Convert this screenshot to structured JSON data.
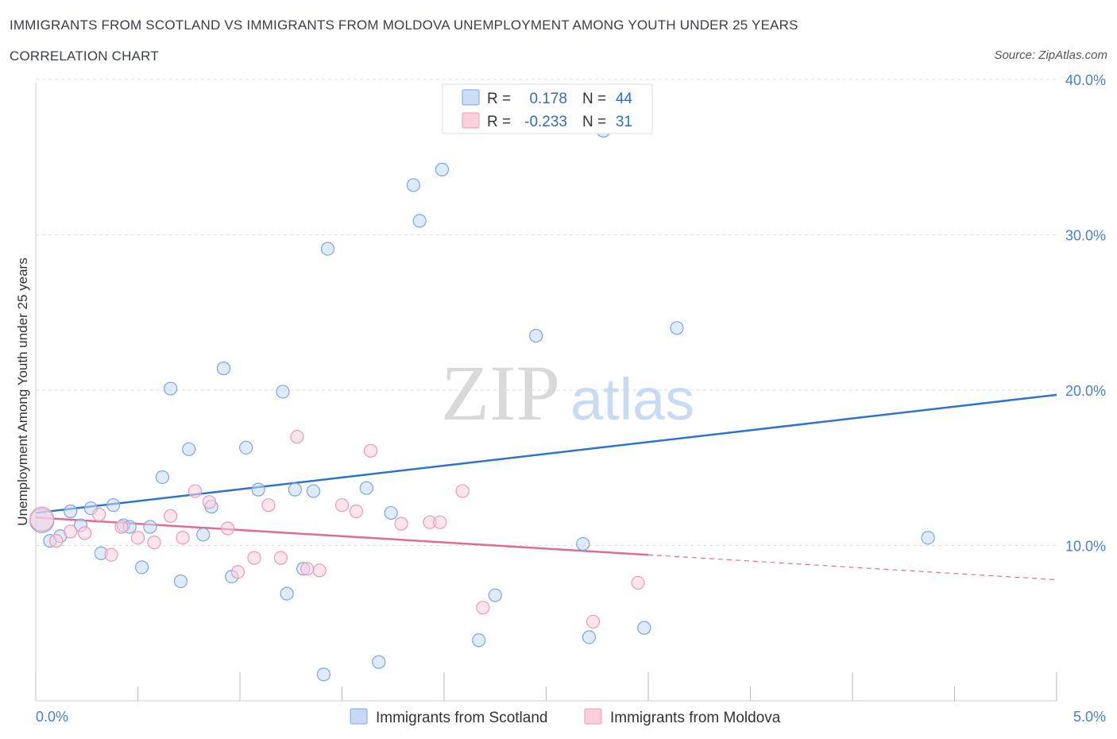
{
  "header": {
    "title": "IMMIGRANTS FROM SCOTLAND VS IMMIGRANTS FROM MOLDOVA UNEMPLOYMENT AMONG YOUTH UNDER 25 YEARS",
    "subtitle": "CORRELATION CHART",
    "source": "Source: ZipAtlas.com"
  },
  "watermark": {
    "zip": "ZIP",
    "atlas": "atlas"
  },
  "stats_legend": {
    "rows": [
      {
        "r_label": "R =",
        "r_value": "0.178",
        "n_label": "N =",
        "n_value": "44",
        "color": "#a9c8f2"
      },
      {
        "r_label": "R =",
        "r_value": "-0.233",
        "n_label": "N =",
        "n_value": "31",
        "color": "#f6bfd0"
      }
    ]
  },
  "colors": {
    "scotland_fill": "#c5d9f5",
    "scotland_stroke": "#7aa6e0",
    "scotland_line": "#2f73cc",
    "moldova_fill": "#f9d0dc",
    "moldova_stroke": "#ec9ab3",
    "moldova_line": "#e06c95",
    "grid": "#dcdcdc",
    "tick_label": "#4a7fd0"
  },
  "chart_data": {
    "type": "scatter",
    "title": "IMMIGRANTS FROM SCOTLAND VS IMMIGRANTS FROM MOLDOVA UNEMPLOYMENT AMONG YOUTH UNDER 25 YEARS",
    "subtitle": "CORRELATION CHART",
    "xlabel": "",
    "ylabel": "Unemployment Among Youth under 25 years",
    "xlim": [
      0,
      5
    ],
    "ylim": [
      0,
      40
    ],
    "x_tick_labels": [
      "0.0%",
      "5.0%"
    ],
    "y_ticks": [
      10,
      20,
      30,
      40
    ],
    "y_tick_labels": [
      "10.0%",
      "20.0%",
      "30.0%",
      "40.0%"
    ],
    "grid": true,
    "legend_position": "bottom-center",
    "series": [
      {
        "name": "Immigrants from Scotland",
        "r": 0.178,
        "n": 44,
        "trend": {
          "x": [
            0,
            5
          ],
          "y": [
            12.1,
            19.7
          ]
        },
        "points": [
          [
            0.03,
            11.6
          ],
          [
            0.07,
            10.3
          ],
          [
            0.12,
            10.6
          ],
          [
            0.17,
            12.2
          ],
          [
            0.22,
            11.3
          ],
          [
            0.27,
            12.4
          ],
          [
            0.32,
            9.5
          ],
          [
            0.38,
            12.6
          ],
          [
            0.43,
            11.3
          ],
          [
            0.46,
            11.2
          ],
          [
            0.52,
            8.6
          ],
          [
            0.56,
            11.2
          ],
          [
            0.62,
            14.4
          ],
          [
            0.66,
            20.1
          ],
          [
            0.71,
            7.7
          ],
          [
            0.75,
            16.2
          ],
          [
            0.82,
            10.7
          ],
          [
            0.86,
            12.5
          ],
          [
            0.92,
            21.4
          ],
          [
            0.96,
            8.0
          ],
          [
            1.03,
            16.3
          ],
          [
            1.09,
            13.6
          ],
          [
            1.21,
            19.9
          ],
          [
            1.23,
            6.9
          ],
          [
            1.27,
            13.6
          ],
          [
            1.31,
            8.5
          ],
          [
            1.36,
            13.5
          ],
          [
            1.41,
            1.7
          ],
          [
            1.43,
            29.1
          ],
          [
            1.62,
            13.7
          ],
          [
            1.68,
            2.5
          ],
          [
            1.74,
            12.1
          ],
          [
            1.85,
            33.2
          ],
          [
            1.88,
            30.9
          ],
          [
            1.99,
            34.2
          ],
          [
            2.17,
            3.9
          ],
          [
            2.25,
            6.8
          ],
          [
            2.45,
            23.5
          ],
          [
            2.68,
            10.1
          ],
          [
            2.71,
            4.1
          ],
          [
            2.78,
            36.7
          ],
          [
            2.98,
            4.7
          ],
          [
            3.14,
            24.0
          ],
          [
            4.37,
            10.5
          ]
        ]
      },
      {
        "name": "Immigrants from Moldova",
        "r": -0.233,
        "n": 31,
        "trend": {
          "x": [
            0,
            3.0
          ],
          "y": [
            11.8,
            9.4
          ],
          "dashed_to": {
            "x": 5,
            "y": 7.8
          }
        },
        "points": [
          [
            0.03,
            11.7
          ],
          [
            0.1,
            10.3
          ],
          [
            0.17,
            10.9
          ],
          [
            0.24,
            10.8
          ],
          [
            0.31,
            12.0
          ],
          [
            0.37,
            9.4
          ],
          [
            0.42,
            11.2
          ],
          [
            0.5,
            10.5
          ],
          [
            0.58,
            10.2
          ],
          [
            0.66,
            11.9
          ],
          [
            0.72,
            10.5
          ],
          [
            0.78,
            13.5
          ],
          [
            0.85,
            12.8
          ],
          [
            0.94,
            11.1
          ],
          [
            0.99,
            8.3
          ],
          [
            1.07,
            9.2
          ],
          [
            1.14,
            12.6
          ],
          [
            1.2,
            9.2
          ],
          [
            1.28,
            17.0
          ],
          [
            1.33,
            8.5
          ],
          [
            1.39,
            8.4
          ],
          [
            1.5,
            12.6
          ],
          [
            1.57,
            12.2
          ],
          [
            1.64,
            16.1
          ],
          [
            1.79,
            11.4
          ],
          [
            1.93,
            11.5
          ],
          [
            1.98,
            11.5
          ],
          [
            2.09,
            13.5
          ],
          [
            2.19,
            6.0
          ],
          [
            2.73,
            5.1
          ],
          [
            2.95,
            7.6
          ]
        ]
      }
    ]
  }
}
